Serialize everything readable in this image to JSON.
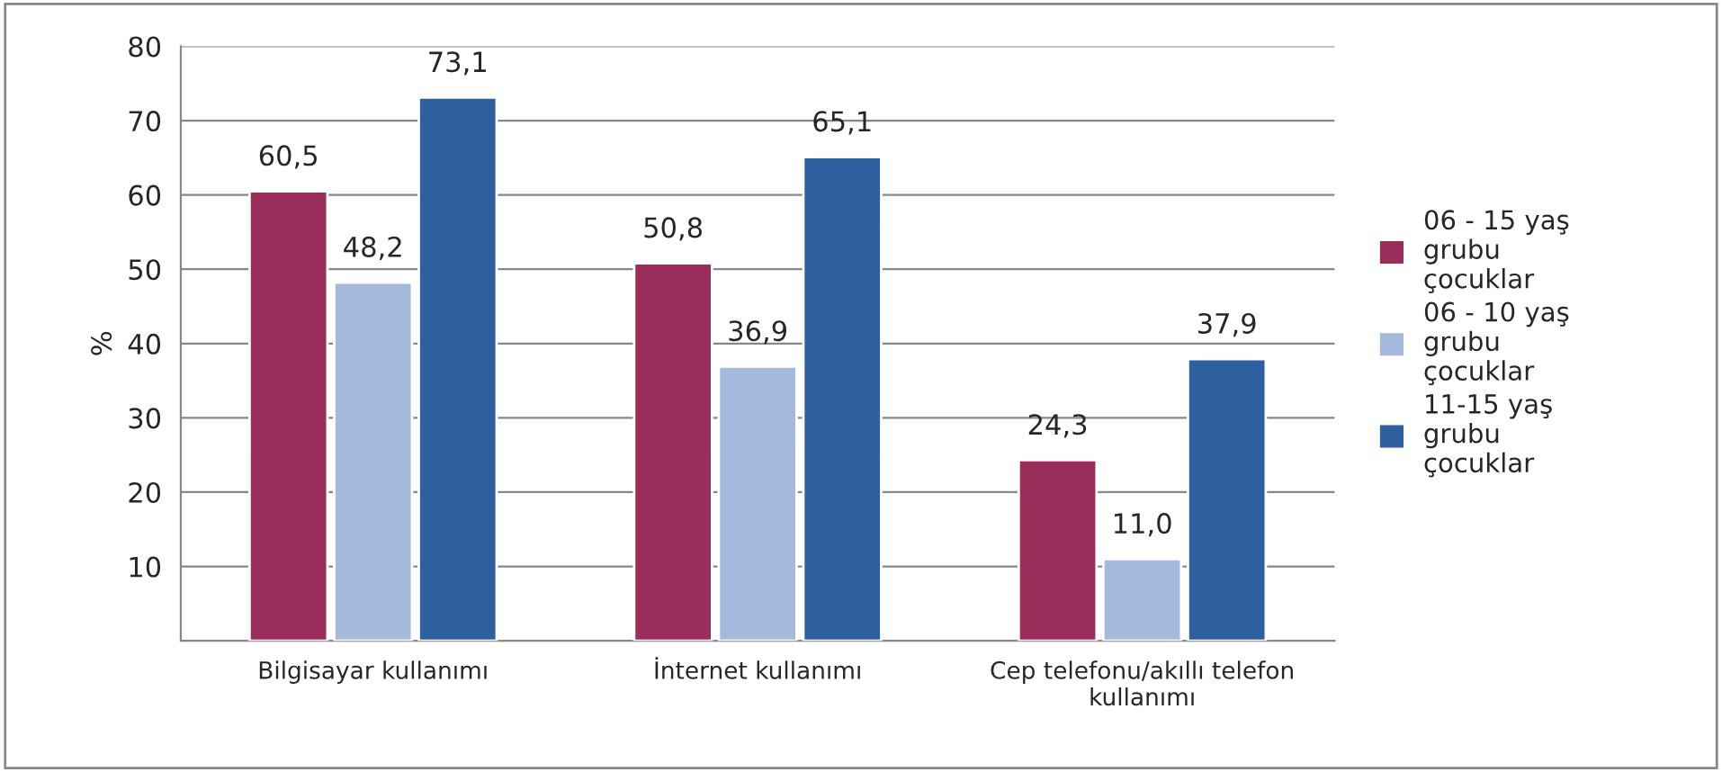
{
  "chart_data": {
    "type": "bar",
    "ylabel": "%",
    "categories": [
      "Bilgisayar kullanımı",
      "İnternet kullanımı",
      "Cep telefonu/akıllı telefon\nkullanımı"
    ],
    "series": [
      {
        "name": "06 - 15 yaş\ngrubu\nçocuklar",
        "color": "#9b2d5a",
        "values": [
          60.5,
          50.8,
          24.3
        ],
        "value_labels": [
          "60,5",
          "50,8",
          "24,3"
        ]
      },
      {
        "name": "06 - 10 yaş\ngrubu\nçocuklar",
        "color": "#a5b9dc",
        "values": [
          48.2,
          36.9,
          11.0
        ],
        "value_labels": [
          "48,2",
          "36,9",
          "11,0"
        ]
      },
      {
        "name": "11-15 yaş\ngrubu\nçocuklar",
        "color": "#2e5f9e",
        "values": [
          73.1,
          65.1,
          37.9
        ],
        "value_labels": [
          "73,1",
          "65,1",
          "37,9"
        ]
      }
    ],
    "ylim": [
      0,
      80
    ],
    "yticks": [
      {
        "value": 0,
        "label": null
      },
      10,
      20,
      30,
      40,
      50,
      60,
      70,
      80
    ],
    "grid": "y",
    "legend": "right"
  }
}
